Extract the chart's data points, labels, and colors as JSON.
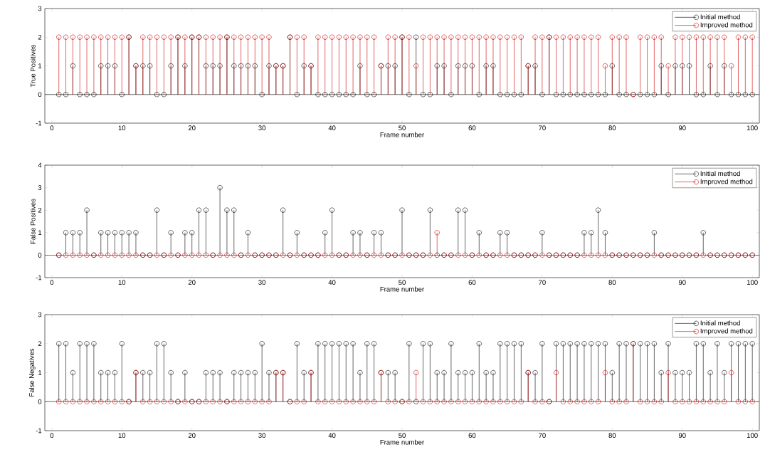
{
  "chart_data": [
    {
      "type": "lollipop",
      "xlabel": "Frame number",
      "ylabel": "True Positives",
      "xlim": [
        -1,
        101
      ],
      "ylim": [
        -1,
        3
      ],
      "xticks": [
        0,
        10,
        20,
        30,
        40,
        50,
        60,
        70,
        80,
        90,
        100
      ],
      "yticks": [
        -1,
        0,
        1,
        2,
        3
      ],
      "legend": "top right",
      "marker": "circle",
      "ref_lines": [
        {
          "axis": "y",
          "value": 0,
          "color": "#000000"
        }
      ],
      "x": [
        1,
        2,
        3,
        4,
        5,
        6,
        7,
        8,
        9,
        10,
        11,
        12,
        13,
        14,
        15,
        16,
        17,
        18,
        19,
        20,
        21,
        22,
        23,
        24,
        25,
        26,
        27,
        28,
        29,
        30,
        31,
        32,
        33,
        34,
        35,
        36,
        37,
        38,
        39,
        40,
        41,
        42,
        43,
        44,
        45,
        46,
        47,
        48,
        49,
        50,
        51,
        52,
        53,
        54,
        55,
        56,
        57,
        58,
        59,
        60,
        61,
        62,
        63,
        64,
        65,
        66,
        67,
        68,
        69,
        70,
        71,
        72,
        73,
        74,
        75,
        76,
        77,
        78,
        79,
        80,
        81,
        82,
        83,
        84,
        85,
        86,
        87,
        88,
        89,
        90,
        91,
        92,
        93,
        94,
        95,
        96,
        97,
        98,
        99,
        100
      ],
      "series": [
        {
          "name": "Initial method",
          "color": "#000000",
          "values": [
            0,
            0,
            1,
            0,
            0,
            0,
            1,
            1,
            1,
            0,
            2,
            1,
            1,
            1,
            0,
            0,
            1,
            2,
            1,
            2,
            2,
            1,
            1,
            1,
            2,
            1,
            1,
            1,
            1,
            0,
            1,
            1,
            1,
            2,
            0,
            1,
            1,
            0,
            0,
            0,
            0,
            0,
            0,
            1,
            0,
            0,
            1,
            1,
            1,
            2,
            0,
            2,
            0,
            0,
            1,
            1,
            0,
            1,
            1,
            1,
            0,
            1,
            1,
            0,
            0,
            0,
            0,
            1,
            1,
            0,
            2,
            0,
            0,
            0,
            0,
            0,
            0,
            0,
            0,
            1,
            0,
            0,
            0,
            0,
            0,
            0,
            1,
            0,
            1,
            1,
            1,
            0,
            0,
            1,
            0,
            1,
            0,
            0,
            0,
            0
          ]
        },
        {
          "name": "Improved method",
          "color": "#cc0000",
          "values": [
            2,
            2,
            2,
            2,
            2,
            2,
            2,
            2,
            2,
            2,
            2,
            1,
            2,
            2,
            2,
            2,
            2,
            2,
            2,
            2,
            2,
            2,
            2,
            2,
            2,
            2,
            2,
            2,
            2,
            2,
            2,
            1,
            1,
            2,
            2,
            2,
            1,
            2,
            2,
            2,
            2,
            2,
            2,
            2,
            2,
            2,
            1,
            2,
            2,
            2,
            2,
            1,
            2,
            2,
            2,
            2,
            2,
            2,
            2,
            2,
            2,
            2,
            2,
            2,
            2,
            2,
            2,
            1,
            2,
            2,
            2,
            2,
            2,
            2,
            2,
            2,
            2,
            2,
            1,
            2,
            2,
            2,
            0,
            2,
            2,
            2,
            2,
            1,
            2,
            2,
            2,
            2,
            2,
            2,
            2,
            2,
            1,
            2,
            2,
            2
          ]
        }
      ]
    },
    {
      "type": "lollipop",
      "xlabel": "Frame number",
      "ylabel": "False Positives",
      "xlim": [
        -1,
        101
      ],
      "ylim": [
        -1,
        4
      ],
      "xticks": [
        0,
        10,
        20,
        30,
        40,
        50,
        60,
        70,
        80,
        90,
        100
      ],
      "yticks": [
        -1,
        0,
        1,
        2,
        3,
        4
      ],
      "legend": "top right",
      "marker": "circle",
      "ref_lines": [
        {
          "axis": "y",
          "value": 0,
          "color": "#000000"
        }
      ],
      "x": [
        1,
        2,
        3,
        4,
        5,
        6,
        7,
        8,
        9,
        10,
        11,
        12,
        13,
        14,
        15,
        16,
        17,
        18,
        19,
        20,
        21,
        22,
        23,
        24,
        25,
        26,
        27,
        28,
        29,
        30,
        31,
        32,
        33,
        34,
        35,
        36,
        37,
        38,
        39,
        40,
        41,
        42,
        43,
        44,
        45,
        46,
        47,
        48,
        49,
        50,
        51,
        52,
        53,
        54,
        55,
        56,
        57,
        58,
        59,
        60,
        61,
        62,
        63,
        64,
        65,
        66,
        67,
        68,
        69,
        70,
        71,
        72,
        73,
        74,
        75,
        76,
        77,
        78,
        79,
        80,
        81,
        82,
        83,
        84,
        85,
        86,
        87,
        88,
        89,
        90,
        91,
        92,
        93,
        94,
        95,
        96,
        97,
        98,
        99,
        100
      ],
      "series": [
        {
          "name": "Initial method",
          "color": "#000000",
          "values": [
            0,
            1,
            1,
            1,
            2,
            0,
            1,
            1,
            1,
            1,
            1,
            1,
            0,
            0,
            2,
            0,
            1,
            0,
            1,
            1,
            2,
            2,
            0,
            3,
            2,
            2,
            0,
            1,
            0,
            0,
            0,
            0,
            2,
            0,
            1,
            0,
            0,
            0,
            1,
            2,
            0,
            0,
            1,
            1,
            0,
            1,
            1,
            0,
            0,
            2,
            0,
            0,
            0,
            2,
            0,
            0,
            0,
            2,
            2,
            0,
            1,
            0,
            0,
            1,
            1,
            0,
            0,
            0,
            0,
            1,
            0,
            0,
            0,
            0,
            0,
            1,
            1,
            2,
            1,
            0,
            0,
            0,
            0,
            0,
            0,
            1,
            0,
            0,
            0,
            0,
            0,
            0,
            1,
            0,
            0,
            0,
            0,
            0,
            0,
            0
          ]
        },
        {
          "name": "Improved method",
          "color": "#cc0000",
          "values": [
            0,
            0,
            0,
            0,
            0,
            0,
            0,
            0,
            0,
            0,
            0,
            0,
            0,
            0,
            0,
            0,
            0,
            0,
            0,
            0,
            0,
            0,
            0,
            0,
            0,
            0,
            0,
            0,
            0,
            0,
            0,
            0,
            0,
            0,
            0,
            0,
            0,
            0,
            0,
            0,
            0,
            0,
            0,
            0,
            0,
            0,
            0,
            0,
            0,
            0,
            0,
            0,
            0,
            0,
            1,
            0,
            0,
            0,
            0,
            0,
            0,
            0,
            0,
            0,
            0,
            0,
            0,
            0,
            0,
            0,
            0,
            0,
            0,
            0,
            0,
            0,
            0,
            0,
            0,
            0,
            0,
            0,
            0,
            0,
            0,
            0,
            0,
            0,
            0,
            0,
            0,
            0,
            0,
            0,
            0,
            0,
            0,
            0,
            0,
            0
          ]
        }
      ]
    },
    {
      "type": "lollipop",
      "xlabel": "Frame number",
      "ylabel": "False Negatives",
      "xlim": [
        -1,
        101
      ],
      "ylim": [
        -1,
        3
      ],
      "xticks": [
        0,
        10,
        20,
        30,
        40,
        50,
        60,
        70,
        80,
        90,
        100
      ],
      "yticks": [
        -1,
        0,
        1,
        2,
        3
      ],
      "legend": "top right",
      "marker": "circle",
      "ref_lines": [
        {
          "axis": "y",
          "value": 0,
          "color": "#000000"
        }
      ],
      "x": [
        1,
        2,
        3,
        4,
        5,
        6,
        7,
        8,
        9,
        10,
        11,
        12,
        13,
        14,
        15,
        16,
        17,
        18,
        19,
        20,
        21,
        22,
        23,
        24,
        25,
        26,
        27,
        28,
        29,
        30,
        31,
        32,
        33,
        34,
        35,
        36,
        37,
        38,
        39,
        40,
        41,
        42,
        43,
        44,
        45,
        46,
        47,
        48,
        49,
        50,
        51,
        52,
        53,
        54,
        55,
        56,
        57,
        58,
        59,
        60,
        61,
        62,
        63,
        64,
        65,
        66,
        67,
        68,
        69,
        70,
        71,
        72,
        73,
        74,
        75,
        76,
        77,
        78,
        79,
        80,
        81,
        82,
        83,
        84,
        85,
        86,
        87,
        88,
        89,
        90,
        91,
        92,
        93,
        94,
        95,
        96,
        97,
        98,
        99,
        100
      ],
      "series": [
        {
          "name": "Initial method",
          "color": "#000000",
          "values": [
            2,
            2,
            1,
            2,
            2,
            2,
            1,
            1,
            1,
            2,
            0,
            1,
            1,
            1,
            2,
            2,
            1,
            0,
            1,
            0,
            0,
            1,
            1,
            1,
            0,
            1,
            1,
            1,
            1,
            2,
            1,
            1,
            1,
            0,
            2,
            1,
            1,
            2,
            2,
            2,
            2,
            2,
            2,
            1,
            2,
            2,
            1,
            1,
            1,
            0,
            2,
            0,
            2,
            2,
            1,
            1,
            2,
            1,
            1,
            1,
            2,
            1,
            1,
            2,
            2,
            2,
            2,
            1,
            1,
            2,
            0,
            2,
            2,
            2,
            2,
            2,
            2,
            2,
            2,
            1,
            2,
            2,
            2,
            2,
            2,
            2,
            1,
            2,
            1,
            1,
            1,
            2,
            2,
            1,
            2,
            1,
            2,
            2,
            2,
            2
          ]
        },
        {
          "name": "Improved method",
          "color": "#cc0000",
          "values": [
            0,
            0,
            0,
            0,
            0,
            0,
            0,
            0,
            0,
            0,
            0,
            1,
            0,
            0,
            0,
            0,
            0,
            0,
            0,
            0,
            0,
            0,
            0,
            0,
            0,
            0,
            0,
            0,
            0,
            0,
            0,
            1,
            1,
            0,
            0,
            0,
            1,
            0,
            0,
            0,
            0,
            0,
            0,
            0,
            0,
            0,
            1,
            0,
            0,
            0,
            0,
            1,
            0,
            0,
            0,
            0,
            0,
            0,
            0,
            0,
            0,
            0,
            0,
            0,
            0,
            0,
            0,
            1,
            0,
            0,
            0,
            1,
            0,
            0,
            0,
            0,
            0,
            0,
            1,
            0,
            0,
            0,
            2,
            0,
            0,
            0,
            0,
            1,
            0,
            0,
            0,
            0,
            0,
            0,
            0,
            0,
            1,
            0,
            0,
            0
          ]
        }
      ]
    }
  ]
}
